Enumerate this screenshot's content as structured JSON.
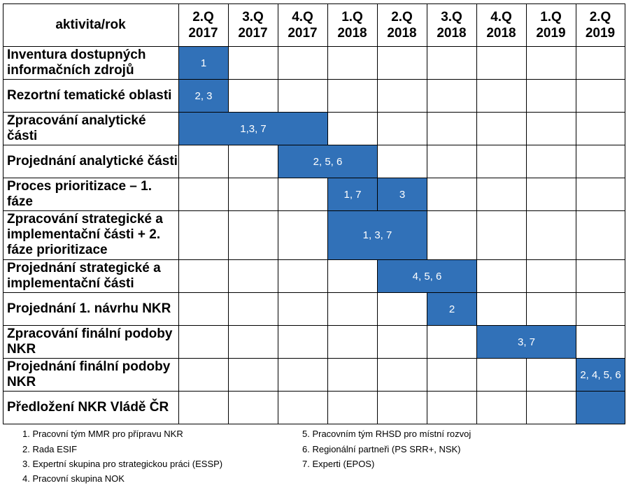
{
  "header": {
    "corner": "aktivita/rok",
    "quarters": [
      [
        "2.Q",
        "2017"
      ],
      [
        "3.Q",
        "2017"
      ],
      [
        "4.Q",
        "2017"
      ],
      [
        "1.Q",
        "2018"
      ],
      [
        "2.Q",
        "2018"
      ],
      [
        "3.Q",
        "2018"
      ],
      [
        "4.Q",
        "2018"
      ],
      [
        "1.Q",
        "2019"
      ],
      [
        "2.Q",
        "2019"
      ]
    ]
  },
  "activities": [
    {
      "label": "Inventura dostupných informačních zdrojů",
      "bars": [
        {
          "from": 0,
          "to": 0,
          "text": "1"
        }
      ]
    },
    {
      "label": "Rezortní tematické oblasti",
      "bars": [
        {
          "from": 0,
          "to": 0,
          "text": "2, 3"
        }
      ]
    },
    {
      "label": "Zpracování analytické části",
      "bars": [
        {
          "from": 0,
          "to": 2,
          "text": "1,3, 7"
        }
      ]
    },
    {
      "label": "Projednání analytické části",
      "bars": [
        {
          "from": 2,
          "to": 3,
          "text": "2, 5, 6"
        }
      ]
    },
    {
      "label": "Proces prioritizace – 1. fáze",
      "bars": [
        {
          "from": 3,
          "to": 3,
          "text": "1, 7"
        },
        {
          "from": 4,
          "to": 4,
          "text": "3"
        }
      ]
    },
    {
      "label": "Zpracování strategické a implementační části + 2. fáze prioritizace",
      "bars": [
        {
          "from": 3,
          "to": 4,
          "text": "1, 3, 7"
        }
      ]
    },
    {
      "label": "Projednání strategické a implementační části",
      "bars": [
        {
          "from": 4,
          "to": 5,
          "text": "4, 5, 6"
        }
      ]
    },
    {
      "label": "Projednání 1. návrhu NKR",
      "bars": [
        {
          "from": 5,
          "to": 5,
          "text": "2"
        }
      ]
    },
    {
      "label": "Zpracování finální podoby NKR",
      "bars": [
        {
          "from": 6,
          "to": 7,
          "text": "3, 7"
        }
      ]
    },
    {
      "label": "Projednání finální podoby NKR",
      "bars": [
        {
          "from": 8,
          "to": 8,
          "text": "2, 4, 5, 6"
        }
      ]
    },
    {
      "label": "Předložení NKR Vládě ČR",
      "bars": [
        {
          "from": 8,
          "to": 8,
          "text": ""
        }
      ]
    }
  ],
  "legend": [
    "1. Pracovní tým MMR pro přípravu NKR",
    "2. Rada ESIF",
    "3. Expertní skupina pro strategickou práci (ESSP)",
    "4. Pracovní skupina NOK",
    "5.  Pracovním tým RHSD pro místní rozvoj",
    "6. Regionální partneři (PS SRR+, NSK)",
    "7. Experti (EPOS)"
  ],
  "colors": {
    "bar": "#3171b8",
    "grid": "#000000"
  }
}
